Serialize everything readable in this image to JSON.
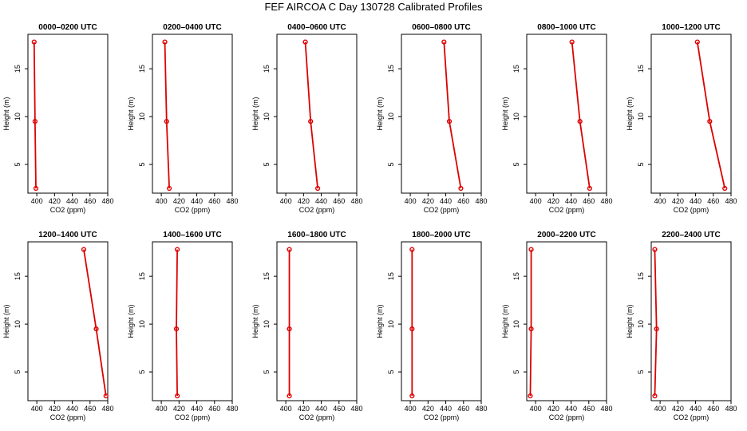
{
  "title": "FEF AIRCOA C  Day 130728  Calibrated Profiles",
  "chart_data": {
    "type": "line",
    "xlabel": "CO2 (ppm)",
    "ylabel": "Height (m)",
    "xlim": [
      390,
      480
    ],
    "ylim": [
      2,
      18.6
    ],
    "xticks": [
      400,
      420,
      440,
      460,
      480
    ],
    "yticks": [
      5,
      10,
      15
    ],
    "line_color": "#dd0000",
    "marker_color": "#dd0000",
    "heights": [
      2.5,
      9.5,
      17.8
    ],
    "panels": [
      {
        "title": "0000–0200 UTC",
        "values": [
          399,
          398,
          397
        ]
      },
      {
        "title": "0200–0400 UTC",
        "values": [
          409,
          406,
          404
        ]
      },
      {
        "title": "0400–0600 UTC",
        "values": [
          436,
          428,
          422
        ]
      },
      {
        "title": "0600–0800 UTC",
        "values": [
          457,
          444,
          438
        ]
      },
      {
        "title": "0800–1000 UTC",
        "values": [
          461,
          450,
          441
        ]
      },
      {
        "title": "1000–1200 UTC",
        "values": [
          473,
          456,
          442
        ]
      },
      {
        "title": "1200–1400 UTC",
        "values": [
          478,
          467,
          453
        ]
      },
      {
        "title": "1400–1600 UTC",
        "values": [
          418,
          417,
          418
        ]
      },
      {
        "title": "1600–1800 UTC",
        "values": [
          404,
          404,
          404
        ]
      },
      {
        "title": "1800–2000 UTC",
        "values": [
          402,
          402,
          402
        ]
      },
      {
        "title": "2000–2200 UTC",
        "values": [
          394,
          395,
          395
        ]
      },
      {
        "title": "2200–2400 UTC",
        "values": [
          394,
          396,
          394
        ]
      }
    ]
  }
}
